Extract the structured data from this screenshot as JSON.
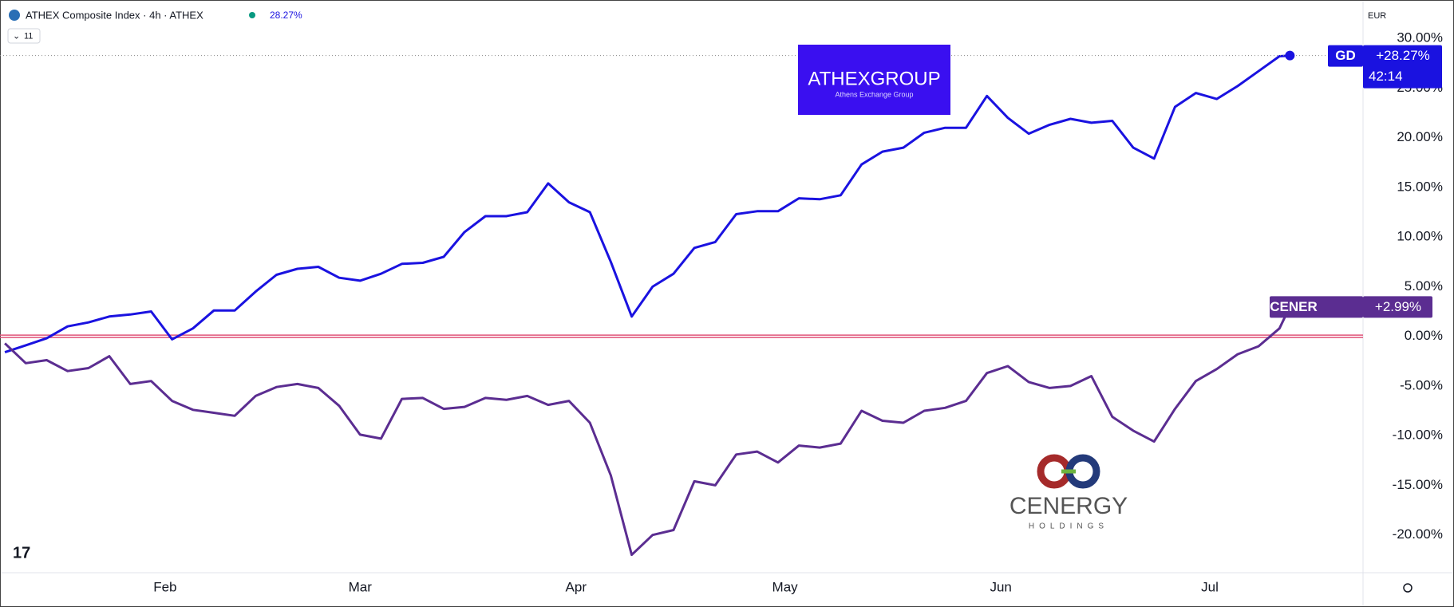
{
  "header": {
    "symbol": "ATHEX Composite Index · 4h · ATHEX",
    "change": "28.27%",
    "count": "11",
    "currency": "EUR"
  },
  "logos": {
    "athex": "ATHEXGROUP",
    "athex_sub": "Athens Exchange Group",
    "cenergy": "CENERGY",
    "cenergy_sub": "HOLDINGS"
  },
  "chart_data": {
    "type": "line",
    "xlim": [
      8.3,
      204
    ],
    "ylim": [
      -23.8,
      32.9
    ],
    "xticks": [
      {
        "value": 32,
        "label": "Feb"
      },
      {
        "value": 60,
        "label": "Mar"
      },
      {
        "value": 91,
        "label": "Apr"
      },
      {
        "value": 121,
        "label": "May"
      },
      {
        "value": 152,
        "label": "Jun"
      },
      {
        "value": 182,
        "label": "Jul"
      }
    ],
    "yticks": [
      {
        "value": -20,
        "label": "-20.00%"
      },
      {
        "value": -15,
        "label": "-15.00%"
      },
      {
        "value": -10,
        "label": "-10.00%"
      },
      {
        "value": -5,
        "label": "-5.00%"
      },
      {
        "value": 0,
        "label": "0.00%"
      },
      {
        "value": 5,
        "label": "5.00%"
      },
      {
        "value": 10,
        "label": "10.00%"
      },
      {
        "value": 15,
        "label": "15.00%"
      },
      {
        "value": 20,
        "label": "20.00%"
      },
      {
        "value": 25,
        "label": "25.00%"
      },
      {
        "value": 30,
        "label": "30.00%"
      }
    ],
    "x": [
      9,
      12,
      15,
      18,
      21,
      24,
      27,
      30,
      33,
      36,
      39,
      42,
      45,
      48,
      51,
      54,
      57,
      60,
      63,
      66,
      69,
      72,
      75,
      78,
      81,
      84,
      87,
      90,
      93,
      96,
      99,
      102,
      105,
      108,
      111,
      114,
      117,
      120,
      123,
      126,
      129,
      132,
      135,
      138,
      141,
      144,
      147,
      150,
      153,
      156,
      159,
      162,
      165,
      168,
      171,
      174,
      177,
      180,
      183,
      186,
      189,
      192,
      193.5
    ],
    "series": [
      {
        "name": "GD",
        "color": "#1a12e0",
        "last_label": "+28.27%",
        "countdown": "42:14",
        "values": [
          -1.6,
          -0.9,
          -0.2,
          1.0,
          1.4,
          2.0,
          2.2,
          2.5,
          -0.3,
          0.8,
          2.6,
          2.6,
          4.5,
          6.2,
          6.8,
          7.0,
          5.9,
          5.6,
          6.3,
          7.3,
          7.4,
          8.0,
          10.5,
          12.1,
          12.1,
          12.5,
          15.4,
          13.5,
          12.5,
          7.5,
          2.0,
          5.0,
          6.3,
          8.9,
          9.5,
          12.3,
          12.6,
          12.6,
          13.9,
          13.8,
          14.2,
          17.3,
          18.6,
          19.0,
          20.5,
          21.0,
          21.0,
          24.2,
          22.0,
          20.4,
          21.3,
          21.9,
          21.5,
          21.7,
          19.0,
          17.9,
          23.1,
          24.5,
          23.9,
          25.2,
          26.7,
          28.2,
          28.27
        ]
      },
      {
        "name": "CENER",
        "color": "#5b2d91",
        "last_label": "+2.99%",
        "values": [
          -0.7,
          -2.7,
          -2.4,
          -3.5,
          -3.2,
          -2.0,
          -4.8,
          -4.5,
          -6.5,
          -7.4,
          -7.7,
          -8.0,
          -6.0,
          -5.1,
          -4.8,
          -5.2,
          -7.0,
          -9.9,
          -10.3,
          -6.3,
          -6.2,
          -7.3,
          -7.1,
          -6.2,
          -6.4,
          -6.0,
          -6.9,
          -6.5,
          -8.7,
          -14.0,
          -22.0,
          -20.0,
          -19.5,
          -14.6,
          -15.0,
          -11.9,
          -11.6,
          -12.7,
          -11.0,
          -11.2,
          -10.8,
          -7.5,
          -8.5,
          -8.7,
          -7.5,
          -7.2,
          -6.5,
          -3.7,
          -3.0,
          -4.6,
          -5.2,
          -5.0,
          -4.0,
          -8.1,
          -9.5,
          -10.6,
          -7.3,
          -4.5,
          -3.3,
          -1.8,
          -1.0,
          0.8,
          2.99
        ]
      }
    ]
  }
}
